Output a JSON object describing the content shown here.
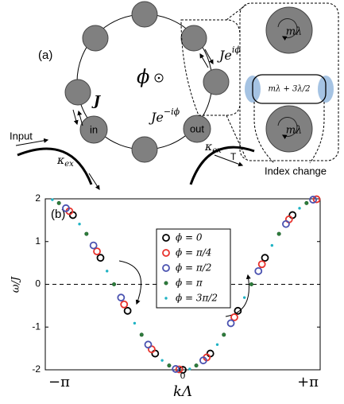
{
  "diagram": {
    "panel_label": "(a)",
    "coupling": "J",
    "flux": "ϕ",
    "coupling_minus": {
      "base": "Je",
      "sup": "−iϕ"
    },
    "coupling_plus": {
      "base": "Je",
      "sup": "iϕ"
    },
    "input": "Input",
    "in_label": "in",
    "out_label": "out",
    "kappa_in": {
      "base": "κ",
      "sub": "ex"
    },
    "kappa_out": {
      "base": "κ",
      "sub": "ex"
    },
    "transmission": "T",
    "zoom_top": "mλ",
    "zoom_link": "mλ + 3λ/2",
    "zoom_bottom": "mλ",
    "index_change": "Index change"
  },
  "chart_data": {
    "type": "scatter",
    "panel_label": "(b)",
    "y_label": "ω/J",
    "x_label": "kΛ",
    "xlim": [
      -3.1416,
      3.1416
    ],
    "ylim": [
      -2,
      2
    ],
    "xticks": [
      {
        "value": -3.1416,
        "label": "−π"
      },
      0,
      {
        "value": 3.1416,
        "label": "+π"
      }
    ],
    "yticks": [
      -2,
      -1,
      0,
      1,
      2
    ],
    "zero_line": true,
    "legend": "center",
    "series": [
      {
        "name": "ϕ = 0",
        "color": "#000000",
        "marker": "circle",
        "x": [
          -2.51,
          -1.88,
          -1.26,
          -0.63,
          0,
          0.63,
          1.26,
          1.88,
          2.51
        ],
        "values": [
          1.62,
          0.62,
          -0.62,
          -1.62,
          -2,
          -1.62,
          -0.62,
          0.62,
          1.62
        ]
      },
      {
        "name": "ϕ = π/4",
        "color": "#e8322c",
        "marker": "circle",
        "x": [
          -2.59,
          -1.96,
          -1.34,
          -0.71,
          -0.08,
          0.55,
          1.18,
          1.81,
          2.43,
          3.06
        ],
        "values": [
          1.71,
          0.77,
          -0.47,
          -1.52,
          -1.99,
          -1.71,
          -0.77,
          0.47,
          1.52,
          1.99
        ]
      },
      {
        "name": "ϕ = π/2",
        "color": "#4a52b0",
        "marker": "circle",
        "x": [
          -2.67,
          -2.04,
          -1.41,
          -0.79,
          -0.16,
          0.47,
          1.1,
          1.73,
          2.36,
          2.98
        ],
        "values": [
          1.78,
          0.91,
          -0.31,
          -1.41,
          -1.98,
          -1.78,
          -0.91,
          0.31,
          1.41,
          1.98
        ]
      },
      {
        "name": "ϕ = π",
        "color": "#2e7d3c",
        "marker": "dot",
        "x": [
          -2.83,
          -2.2,
          -1.57,
          -0.94,
          -0.31,
          0.31,
          0.94,
          1.57,
          2.2,
          2.83
        ],
        "values": [
          1.9,
          1.18,
          0,
          -1.18,
          -1.9,
          -1.9,
          -1.18,
          0,
          1.18,
          1.9
        ]
      },
      {
        "name": "ϕ = 3π/2",
        "color": "#1fb3c4",
        "marker": "small-dot",
        "x": [
          -2.98,
          -2.36,
          -1.73,
          -1.1,
          -0.47,
          0.16,
          0.79,
          1.41,
          2.04,
          2.67
        ],
        "values": [
          1.98,
          1.41,
          0.31,
          -0.91,
          -1.78,
          -1.98,
          -1.41,
          -0.31,
          0.91,
          1.78
        ]
      }
    ]
  }
}
